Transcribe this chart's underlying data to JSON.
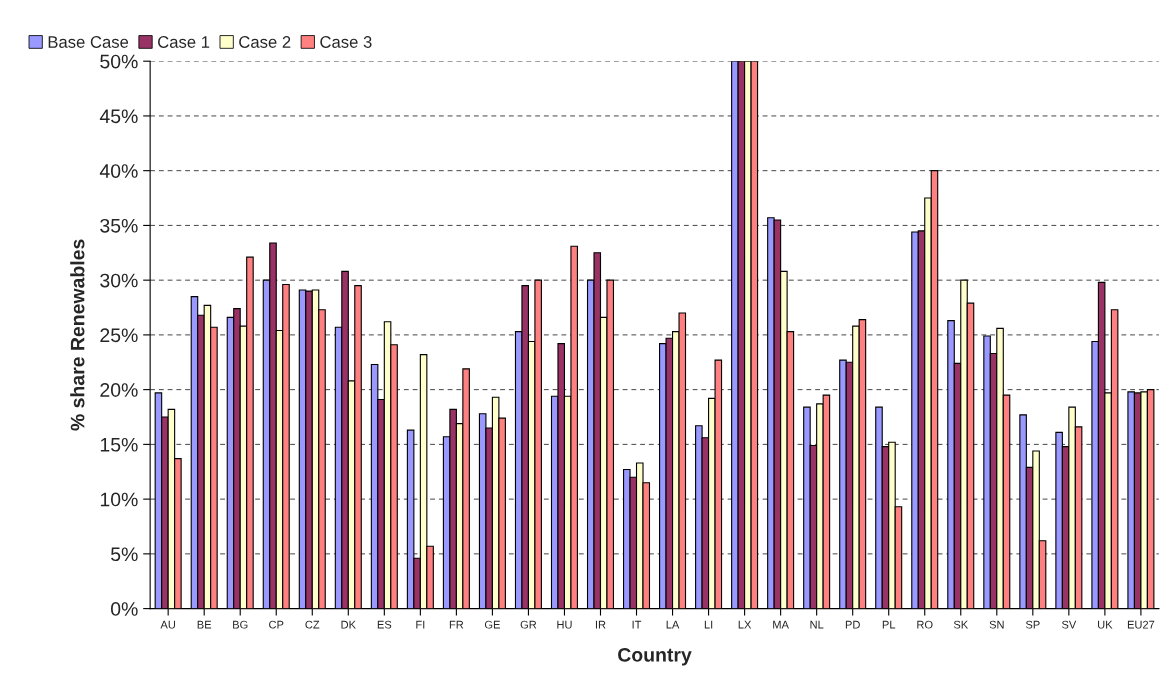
{
  "chart_data": {
    "type": "bar",
    "xlabel": "Country",
    "ylabel": "% share Renewables",
    "categories": [
      "AU",
      "BE",
      "BG",
      "CP",
      "CZ",
      "DK",
      "ES",
      "FI",
      "FR",
      "GE",
      "GR",
      "HU",
      "IR",
      "IT",
      "LA",
      "LI",
      "LX",
      "MA",
      "NL",
      "PD",
      "PL",
      "RO",
      "SK",
      "SN",
      "SP",
      "SV",
      "UK",
      "EU27"
    ],
    "series": [
      {
        "name": "Base Case",
        "color": "#9999ff",
        "values": [
          19.7,
          28.5,
          26.6,
          30.0,
          29.1,
          25.7,
          22.3,
          16.3,
          15.7,
          17.8,
          25.3,
          19.4,
          30.0,
          12.7,
          24.2,
          16.7,
          50,
          35.7,
          18.4,
          22.7,
          18.4,
          34.4,
          26.3,
          24.9,
          17.7,
          16.1,
          24.4,
          19.8
        ]
      },
      {
        "name": "Case 1",
        "color": "#993366",
        "values": [
          17.5,
          26.8,
          27.4,
          33.4,
          29.0,
          30.8,
          19.1,
          4.6,
          18.2,
          16.5,
          29.5,
          24.2,
          32.5,
          12.0,
          24.7,
          15.6,
          50,
          35.5,
          14.9,
          22.5,
          14.8,
          34.5,
          22.4,
          23.3,
          12.9,
          14.8,
          29.8,
          19.7
        ]
      },
      {
        "name": "Case 2",
        "color": "#ffffcc",
        "values": [
          18.2,
          27.7,
          25.8,
          25.4,
          29.1,
          20.8,
          26.2,
          23.2,
          16.9,
          19.3,
          24.4,
          19.4,
          26.6,
          13.3,
          25.3,
          19.2,
          50,
          30.8,
          18.7,
          25.8,
          15.2,
          37.5,
          30.0,
          25.6,
          14.4,
          18.4,
          19.7,
          19.8
        ]
      },
      {
        "name": "Case 3",
        "color": "#ff8080",
        "values": [
          13.7,
          25.7,
          32.1,
          29.6,
          27.3,
          29.5,
          24.1,
          5.7,
          21.9,
          17.4,
          30.0,
          33.1,
          30.0,
          11.5,
          27.0,
          22.7,
          50,
          25.3,
          19.5,
          26.4,
          9.3,
          40.0,
          27.9,
          19.5,
          6.2,
          16.6,
          27.3,
          20.0
        ]
      }
    ],
    "ylim": [
      0,
      50
    ],
    "yticks": [
      {
        "value": 0,
        "label": "0%"
      },
      {
        "value": 5,
        "label": "5%"
      },
      {
        "value": 10,
        "label": "10%"
      },
      {
        "value": 15,
        "label": "15%"
      },
      {
        "value": 20,
        "label": "20%"
      },
      {
        "value": 25,
        "label": "25%"
      },
      {
        "value": 30,
        "label": "30%"
      },
      {
        "value": 35,
        "label": "35%"
      },
      {
        "value": 40,
        "label": "40%"
      },
      {
        "value": 45,
        "label": "45%"
      },
      {
        "value": 50,
        "label": "50%"
      }
    ],
    "grid": "y",
    "legend": "top left"
  }
}
